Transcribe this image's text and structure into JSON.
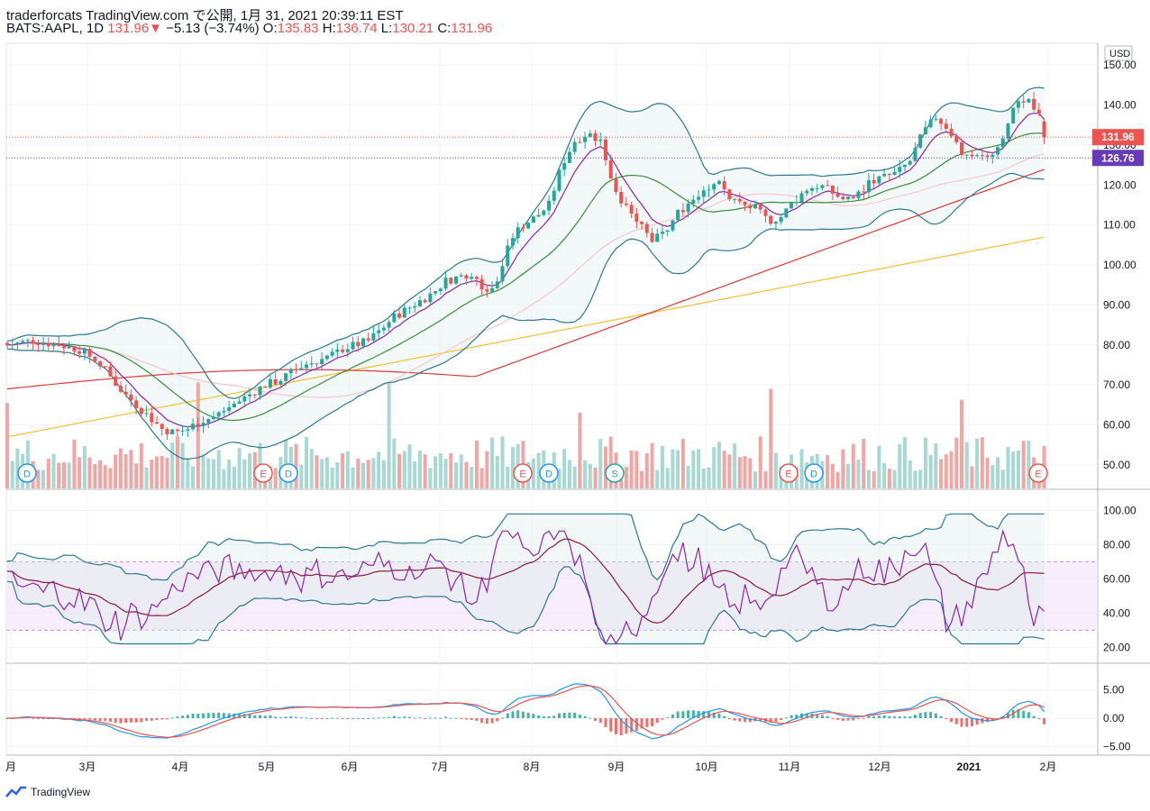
{
  "header": {
    "line1": "traderforcats TradingView.com で公開, 1月 31, 2021 20:39:11 EST",
    "symbol": "BATS:AAPL, 1D",
    "last": "131.96",
    "change": "−5.13 (−3.74%)",
    "o_label": "O:",
    "o": "135.83",
    "h_label": "H:",
    "h": "136.74",
    "l_label": "L:",
    "l": "130.21",
    "c_label": "C:",
    "c": "131.96"
  },
  "currency_label": "USD",
  "price_axis": {
    "ticks": [
      "150.00",
      "140.00",
      "130.00",
      "120.00",
      "110.00",
      "100.00",
      "90.00",
      "80.00",
      "70.00",
      "60.00",
      "50.00"
    ]
  },
  "price_markers": [
    {
      "value": "131.96",
      "color": "#ef5350"
    },
    {
      "value": "126.76",
      "color": "#673ab7"
    }
  ],
  "rsi_axis": {
    "ticks": [
      "100.00",
      "80.00",
      "60.00",
      "40.00",
      "20.00"
    ]
  },
  "macd_axis": {
    "ticks": [
      "5.00",
      "0.00",
      "−5.00"
    ]
  },
  "time_axis": {
    "labels": [
      "月",
      "3月",
      "4月",
      "5月",
      "6月",
      "7月",
      "8月",
      "9月",
      "10月",
      "11月",
      "12月",
      "2021",
      "2月"
    ]
  },
  "events": [
    {
      "label": "D",
      "kind": "dividend"
    },
    {
      "label": "E",
      "kind": "earnings"
    },
    {
      "label": "D",
      "kind": "dividend"
    },
    {
      "label": "E",
      "kind": "earnings"
    },
    {
      "label": "D",
      "kind": "dividend"
    },
    {
      "label": "S",
      "kind": "split"
    },
    {
      "label": "E",
      "kind": "earnings"
    },
    {
      "label": "D",
      "kind": "dividend"
    },
    {
      "label": "E",
      "kind": "earnings"
    }
  ],
  "footer": {
    "brand": "TradingView"
  },
  "colors": {
    "up": "#26a69a",
    "down": "#ef5350",
    "bb": "#2a7a8f",
    "sma": "#e03a3a",
    "ema200": "#f6bf33",
    "mid": "#388e3c",
    "rsi": "#8e24aa",
    "rsi_ma": "#8b1a3a",
    "macd": "#2196f3",
    "signal": "#ef5350"
  },
  "chart_data": {
    "type": "candlestick",
    "symbol": "BATS:AAPL",
    "interval": "1D",
    "ylim": [
      44,
      155
    ],
    "key_prices": {
      "open": 135.83,
      "high": 136.74,
      "low": 130.21,
      "close": 131.96,
      "change": -5.13,
      "change_pct": -3.74,
      "line2": 126.76
    },
    "anchors_close": [
      [
        0,
        80
      ],
      [
        20,
        81
      ],
      [
        40,
        80
      ],
      [
        55,
        79
      ],
      [
        70,
        76
      ],
      [
        80,
        72
      ],
      [
        90,
        68
      ],
      [
        100,
        65
      ],
      [
        110,
        62
      ],
      [
        120,
        59
      ],
      [
        130,
        58
      ],
      [
        140,
        59
      ],
      [
        150,
        61
      ],
      [
        160,
        62
      ],
      [
        170,
        64
      ],
      [
        180,
        66
      ],
      [
        190,
        68
      ],
      [
        200,
        70
      ],
      [
        210,
        71
      ],
      [
        220,
        73
      ],
      [
        230,
        75
      ],
      [
        240,
        76
      ],
      [
        250,
        77
      ],
      [
        260,
        79
      ],
      [
        270,
        80
      ],
      [
        280,
        81
      ],
      [
        290,
        84
      ],
      [
        300,
        87
      ],
      [
        310,
        89
      ],
      [
        320,
        91
      ],
      [
        330,
        93
      ],
      [
        340,
        96
      ],
      [
        350,
        97
      ],
      [
        360,
        98
      ],
      [
        370,
        94
      ],
      [
        380,
        95
      ],
      [
        390,
        107
      ],
      [
        400,
        110
      ],
      [
        410,
        112
      ],
      [
        420,
        115
      ],
      [
        430,
        125
      ],
      [
        440,
        131
      ],
      [
        450,
        133
      ],
      [
        460,
        131
      ],
      [
        470,
        120
      ],
      [
        480,
        114
      ],
      [
        490,
        110
      ],
      [
        500,
        106
      ],
      [
        510,
        108
      ],
      [
        520,
        113
      ],
      [
        530,
        116
      ],
      [
        540,
        119
      ],
      [
        550,
        121
      ],
      [
        560,
        117
      ],
      [
        570,
        115
      ],
      [
        580,
        114
      ],
      [
        590,
        111
      ],
      [
        600,
        112
      ],
      [
        610,
        116
      ],
      [
        620,
        119
      ],
      [
        630,
        120
      ],
      [
        640,
        118
      ],
      [
        650,
        116
      ],
      [
        660,
        118
      ],
      [
        670,
        121
      ],
      [
        680,
        122
      ],
      [
        690,
        123
      ],
      [
        700,
        126
      ],
      [
        710,
        133
      ],
      [
        720,
        137
      ],
      [
        730,
        134
      ],
      [
        740,
        128
      ],
      [
        750,
        127
      ],
      [
        760,
        127
      ],
      [
        770,
        130
      ],
      [
        780,
        139
      ],
      [
        790,
        142
      ],
      [
        800,
        137
      ],
      [
        805,
        131.96
      ]
    ],
    "volume_bars": 175,
    "indicators": {
      "bollinger_bands": true,
      "sma": true,
      "ema_200": true,
      "rsi": {
        "upper_band": 70,
        "lower_band": 30
      },
      "macd": true
    }
  }
}
